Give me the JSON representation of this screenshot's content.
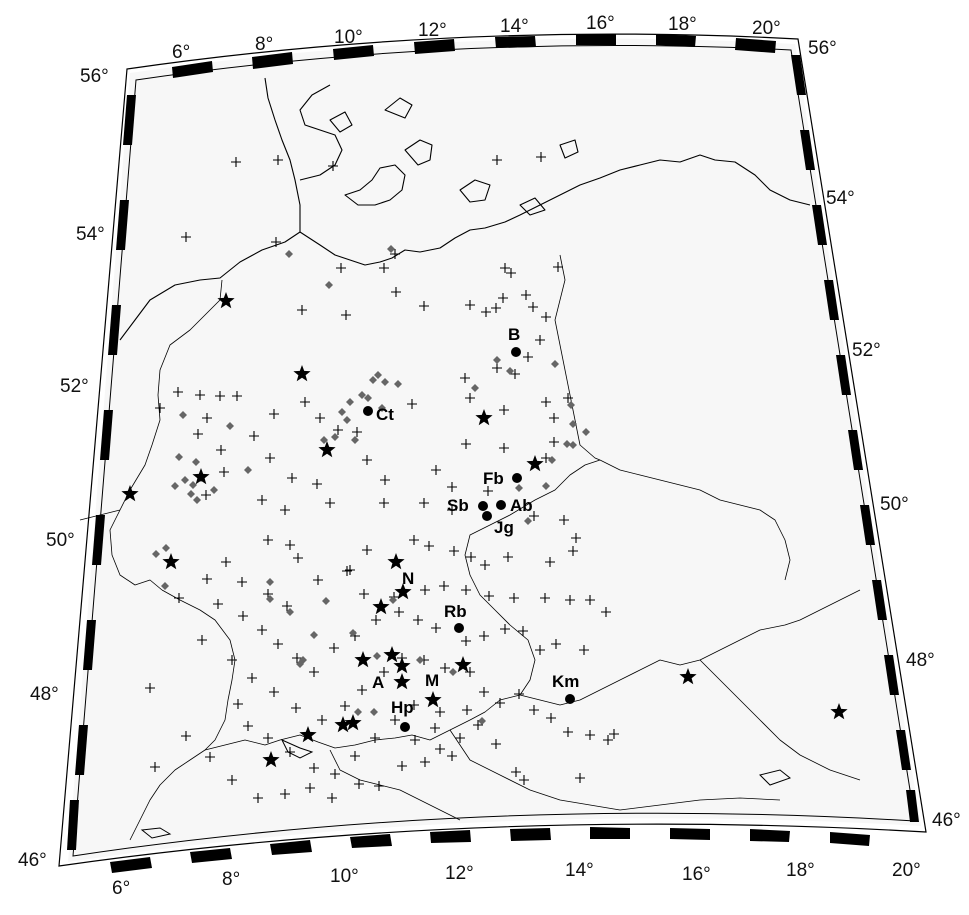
{
  "map": {
    "lon_labels_top": [
      "6°",
      "8°",
      "10°",
      "12°",
      "14°",
      "16°",
      "18°",
      "20°"
    ],
    "lon_labels_bottom": [
      "6°",
      "8°",
      "10°",
      "12°",
      "14°",
      "16°",
      "18°",
      "20°"
    ],
    "lat_labels_left": [
      "46°",
      "48°",
      "50°",
      "52°",
      "54°",
      "56°"
    ],
    "lat_labels_right": [
      "46°",
      "48°",
      "50°",
      "52°",
      "54°",
      "56°"
    ]
  },
  "sites": [
    {
      "label": "B",
      "lon": 13.4,
      "lat": 52.5
    },
    {
      "label": "Ct",
      "lon": 10.4,
      "lat": 51.7
    },
    {
      "label": "Fb",
      "lon": 13.3,
      "lat": 50.9
    },
    {
      "label": "Sb",
      "lon": 12.5,
      "lat": 50.5
    },
    {
      "label": "Ab",
      "lon": 12.9,
      "lat": 50.5
    },
    {
      "label": "Jg",
      "lon": 12.7,
      "lat": 50.4
    },
    {
      "label": "N",
      "lon": 11.0,
      "lat": 49.5
    },
    {
      "label": "Rb",
      "lon": 12.1,
      "lat": 49.0
    },
    {
      "label": "A",
      "lon": 10.9,
      "lat": 48.4
    },
    {
      "label": "M",
      "lon": 11.6,
      "lat": 48.1
    },
    {
      "label": "Hp",
      "lon": 11.0,
      "lat": 47.8
    },
    {
      "label": "Km",
      "lon": 14.3,
      "lat": 48.1
    }
  ],
  "colors": {
    "land": "#f7f7f7",
    "coast": "#000000",
    "border": "#000000",
    "diamond": "#666666",
    "star": "#000000"
  }
}
